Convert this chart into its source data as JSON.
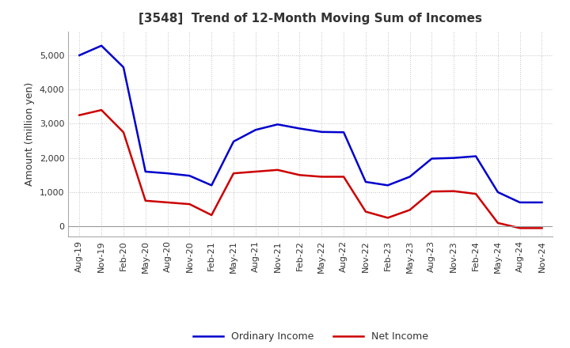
{
  "title": "[3548]  Trend of 12-Month Moving Sum of Incomes",
  "ylabel": "Amount (million yen)",
  "x_labels": [
    "Aug-19",
    "Nov-19",
    "Feb-20",
    "May-20",
    "Aug-20",
    "Nov-20",
    "Feb-21",
    "May-21",
    "Aug-21",
    "Nov-21",
    "Feb-22",
    "May-22",
    "Aug-22",
    "Nov-22",
    "Feb-23",
    "May-23",
    "Aug-23",
    "Nov-23",
    "Feb-24",
    "May-24",
    "Aug-24",
    "Nov-24"
  ],
  "ordinary_income": [
    5000,
    5280,
    4650,
    1600,
    1550,
    1480,
    1200,
    2480,
    2820,
    2980,
    2860,
    2760,
    2750,
    1300,
    1200,
    1450,
    1980,
    2000,
    2050,
    1000,
    700,
    700
  ],
  "net_income": [
    3250,
    3400,
    2750,
    750,
    700,
    650,
    330,
    1550,
    1600,
    1650,
    1500,
    1450,
    1450,
    430,
    250,
    480,
    1020,
    1030,
    950,
    100,
    -50,
    -50
  ],
  "ordinary_color": "#0000cc",
  "net_color": "#cc0000",
  "ylim_min": -300,
  "ylim_max": 5700,
  "yticks": [
    0,
    1000,
    2000,
    3000,
    4000,
    5000
  ],
  "background_color": "#ffffff",
  "plot_bg_color": "#ffffff",
  "grid_color": "#b0b0b0",
  "title_color": "#333333",
  "title_fontsize": 11,
  "axis_fontsize": 9,
  "tick_fontsize": 8,
  "legend_fontsize": 9
}
